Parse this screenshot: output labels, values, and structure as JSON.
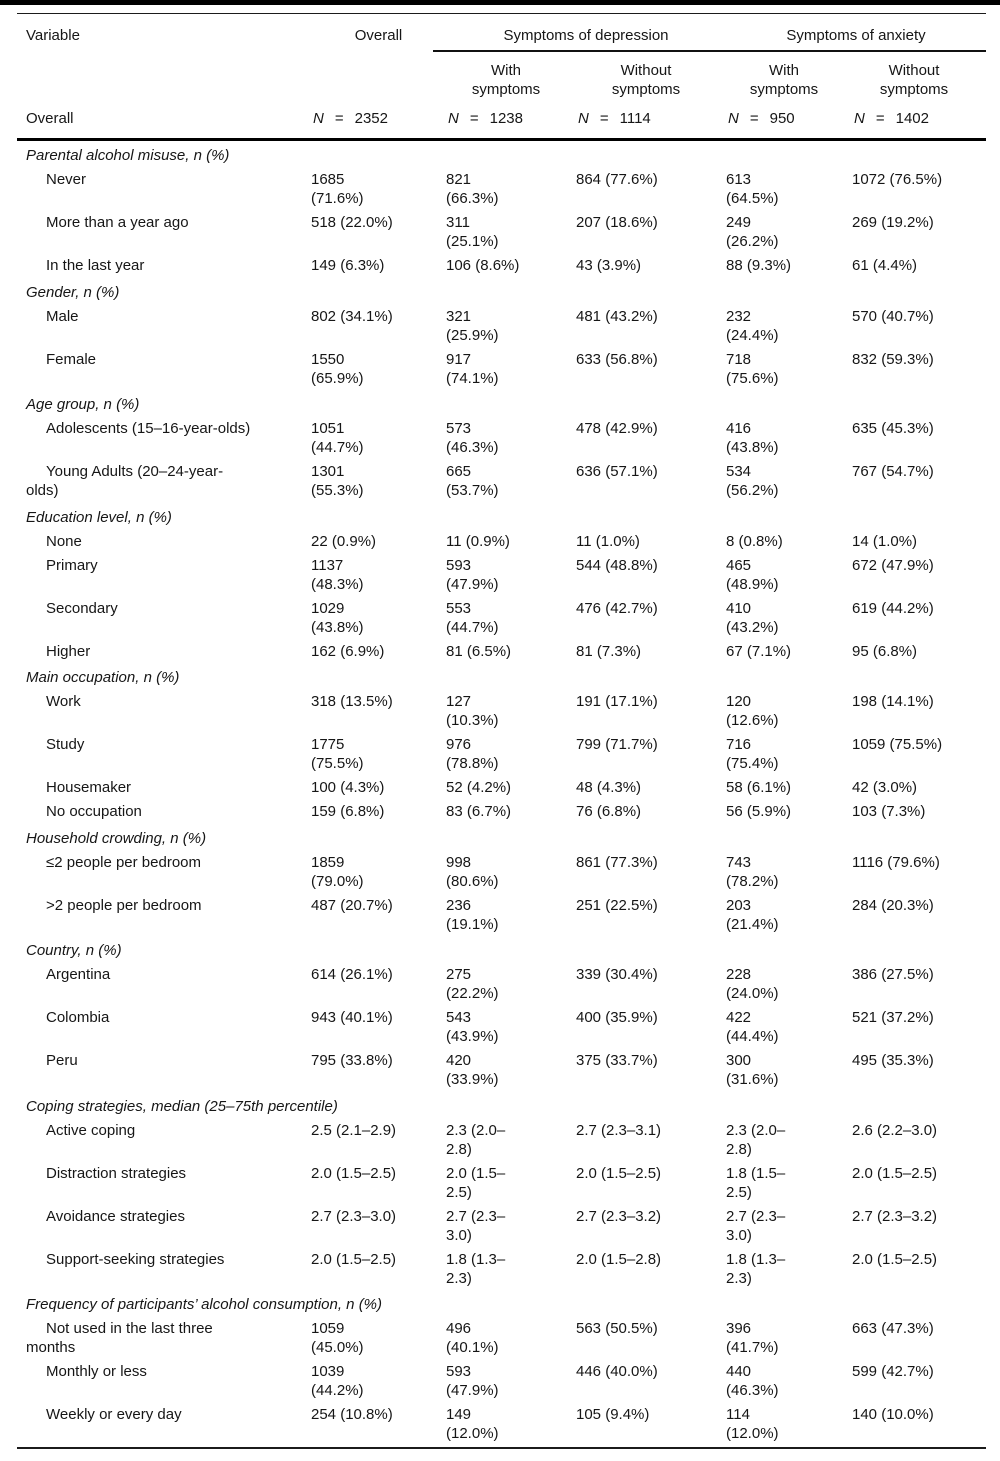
{
  "header": {
    "col_variable": "Variable",
    "col_overall": "Overall",
    "span_depression": "Symptoms of depression",
    "span_anxiety": "Symptoms of anxiety",
    "sub_with": "With\nsymptoms",
    "sub_without": "Without\nsymptoms",
    "overall_row_label": "Overall",
    "n_symbol": "N",
    "eq": "=",
    "n_values": [
      "2352",
      "1238",
      "1114",
      "950",
      "1402"
    ]
  },
  "sections": [
    {
      "title": "Parental alcohol misuse, n (%)",
      "rows": [
        {
          "label": "Never",
          "values": [
            "1685\n(71.6%)",
            "821\n(66.3%)",
            "864 (77.6%)",
            "613\n(64.5%)",
            "1072 (76.5%)"
          ]
        },
        {
          "label": "More than a year ago",
          "values": [
            "518 (22.0%)",
            "311\n(25.1%)",
            "207 (18.6%)",
            "249\n(26.2%)",
            "269 (19.2%)"
          ]
        },
        {
          "label": "In the last year",
          "values": [
            "149 (6.3%)",
            "106 (8.6%)",
            "43 (3.9%)",
            "88 (9.3%)",
            "61 (4.4%)"
          ]
        }
      ]
    },
    {
      "title": "Gender, n (%)",
      "rows": [
        {
          "label": "Male",
          "values": [
            "802 (34.1%)",
            "321\n(25.9%)",
            "481 (43.2%)",
            "232\n(24.4%)",
            "570 (40.7%)"
          ]
        },
        {
          "label": "Female",
          "values": [
            "1550\n(65.9%)",
            "917\n(74.1%)",
            "633 (56.8%)",
            "718\n(75.6%)",
            "832 (59.3%)"
          ]
        }
      ]
    },
    {
      "title": "Age group, n (%)",
      "rows": [
        {
          "label": "Adolescents (15–16-year-olds)",
          "values": [
            "1051\n(44.7%)",
            "573\n(46.3%)",
            "478 (42.9%)",
            "416\n(43.8%)",
            "635 (45.3%)"
          ]
        },
        {
          "label": "Young Adults (20–24-year-\nolds)",
          "values": [
            "1301\n(55.3%)",
            "665\n(53.7%)",
            "636 (57.1%)",
            "534\n(56.2%)",
            "767 (54.7%)"
          ]
        }
      ]
    },
    {
      "title": "Education level, n (%)",
      "rows": [
        {
          "label": "None",
          "values": [
            "22 (0.9%)",
            "11 (0.9%)",
            "11 (1.0%)",
            "8 (0.8%)",
            "14 (1.0%)"
          ]
        },
        {
          "label": "Primary",
          "values": [
            "1137\n(48.3%)",
            "593\n(47.9%)",
            "544 (48.8%)",
            "465\n(48.9%)",
            "672 (47.9%)"
          ]
        },
        {
          "label": "Secondary",
          "values": [
            "1029\n(43.8%)",
            "553\n(44.7%)",
            "476 (42.7%)",
            "410\n(43.2%)",
            "619 (44.2%)"
          ]
        },
        {
          "label": "Higher",
          "values": [
            "162 (6.9%)",
            "81 (6.5%)",
            "81 (7.3%)",
            "67 (7.1%)",
            "95 (6.8%)"
          ]
        }
      ]
    },
    {
      "title": "Main occupation, n (%)",
      "rows": [
        {
          "label": "Work",
          "values": [
            "318 (13.5%)",
            "127\n(10.3%)",
            "191 (17.1%)",
            "120\n(12.6%)",
            "198 (14.1%)"
          ]
        },
        {
          "label": "Study",
          "values": [
            "1775\n(75.5%)",
            "976\n(78.8%)",
            "799 (71.7%)",
            "716\n(75.4%)",
            "1059 (75.5%)"
          ]
        },
        {
          "label": "Housemaker",
          "values": [
            "100 (4.3%)",
            "52 (4.2%)",
            "48 (4.3%)",
            "58 (6.1%)",
            "42 (3.0%)"
          ]
        },
        {
          "label": "No occupation",
          "values": [
            "159 (6.8%)",
            "83 (6.7%)",
            "76 (6.8%)",
            "56 (5.9%)",
            "103 (7.3%)"
          ]
        }
      ]
    },
    {
      "title": "Household crowding, n (%)",
      "rows": [
        {
          "label": "≤2 people per bedroom",
          "values": [
            "1859\n(79.0%)",
            "998\n(80.6%)",
            "861 (77.3%)",
            "743\n(78.2%)",
            "1116 (79.6%)"
          ]
        },
        {
          "label": ">2 people per bedroom",
          "values": [
            "487 (20.7%)",
            "236\n(19.1%)",
            "251 (22.5%)",
            "203\n(21.4%)",
            "284 (20.3%)"
          ]
        }
      ]
    },
    {
      "title": "Country, n (%)",
      "rows": [
        {
          "label": "Argentina",
          "values": [
            "614 (26.1%)",
            "275\n(22.2%)",
            "339 (30.4%)",
            "228\n(24.0%)",
            "386 (27.5%)"
          ]
        },
        {
          "label": "Colombia",
          "values": [
            "943 (40.1%)",
            "543\n(43.9%)",
            "400 (35.9%)",
            "422\n(44.4%)",
            "521 (37.2%)"
          ]
        },
        {
          "label": "Peru",
          "values": [
            "795 (33.8%)",
            "420\n(33.9%)",
            "375 (33.7%)",
            "300\n(31.6%)",
            "495 (35.3%)"
          ]
        }
      ]
    },
    {
      "title": "Coping strategies, median (25–75th percentile)",
      "rows": [
        {
          "label": "Active coping",
          "values": [
            "2.5 (2.1–2.9)",
            "2.3 (2.0–\n2.8)",
            "2.7 (2.3–3.1)",
            "2.3 (2.0–\n2.8)",
            "2.6 (2.2–3.0)"
          ]
        },
        {
          "label": "Distraction strategies",
          "values": [
            "2.0 (1.5–2.5)",
            "2.0 (1.5–\n2.5)",
            "2.0 (1.5–2.5)",
            "1.8 (1.5–\n2.5)",
            "2.0 (1.5–2.5)"
          ]
        },
        {
          "label": "Avoidance strategies",
          "values": [
            "2.7 (2.3–3.0)",
            "2.7 (2.3–\n3.0)",
            "2.7 (2.3–3.2)",
            "2.7 (2.3–\n3.0)",
            "2.7 (2.3–3.2)"
          ]
        },
        {
          "label": "Support-seeking strategies",
          "values": [
            "2.0 (1.5–2.5)",
            "1.8 (1.3–\n2.3)",
            "2.0 (1.5–2.8)",
            "1.8 (1.3–\n2.3)",
            "2.0 (1.5–2.5)"
          ]
        }
      ]
    },
    {
      "title": "Frequency of participants’ alcohol consumption, n (%)",
      "rows": [
        {
          "label": "Not used in the last three\nmonths",
          "values": [
            "1059\n(45.0%)",
            "496\n(40.1%)",
            "563 (50.5%)",
            "396\n(41.7%)",
            "663 (47.3%)"
          ]
        },
        {
          "label": "Monthly or less",
          "values": [
            "1039\n(44.2%)",
            "593\n(47.9%)",
            "446 (40.0%)",
            "440\n(46.3%)",
            "599 (42.7%)"
          ]
        },
        {
          "label": "Weekly or every day",
          "values": [
            "254 (10.8%)",
            "149\n(12.0%)",
            "105 (9.4%)",
            "114\n(12.0%)",
            "140 (10.0%)"
          ]
        }
      ]
    }
  ]
}
